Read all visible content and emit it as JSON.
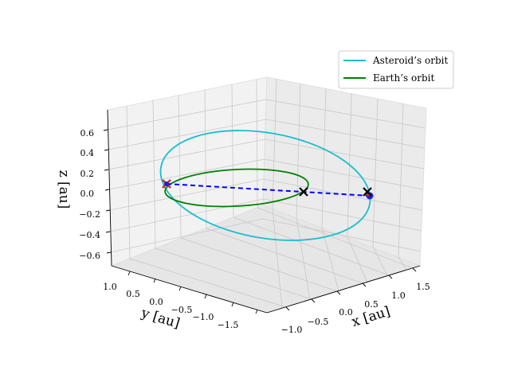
{
  "chart_data": {
    "type": "line-3d",
    "title": "",
    "axes": {
      "x": {
        "label": "x [au]",
        "ticks": [
          -1.0,
          -0.5,
          0.0,
          0.5,
          1.0,
          1.5
        ],
        "tick_labels": [
          "−1.0",
          "−0.5",
          "0.0",
          "0.5",
          "1.0",
          "1.5"
        ]
      },
      "y": {
        "label": "y [au]",
        "ticks": [
          1.0,
          0.5,
          0.0,
          -0.5,
          -1.0,
          -1.5
        ],
        "tick_labels": [
          "1.0",
          "0.5",
          "0.0",
          "−0.5",
          "−1.0",
          "−1.5"
        ]
      },
      "z": {
        "label": "z [au]",
        "ticks": [
          0.6,
          0.4,
          0.2,
          0.0,
          -0.2,
          -0.4,
          -0.6
        ],
        "tick_labels": [
          "0.6",
          "0.4",
          "0.2",
          "0.0",
          "−0.2",
          "−0.4",
          "−0.6"
        ]
      }
    },
    "series": [
      {
        "name": "Asteroid's orbit",
        "color": "#17becf"
      },
      {
        "name": "Earth's orbit",
        "color": "#008000"
      }
    ],
    "markers": [
      {
        "name": "black-x-marker",
        "color": "#000000"
      },
      {
        "name": "red-x-marker",
        "color": "#d62728"
      },
      {
        "name": "blue-dot-marker",
        "color": "#1f1fd6"
      }
    ],
    "connector": {
      "style": "dashed",
      "color": "#0000ff"
    },
    "legend": {
      "position": "top-right",
      "entries": [
        "Asteroid’s orbit",
        "Earth’s orbit"
      ]
    },
    "grid": true
  }
}
